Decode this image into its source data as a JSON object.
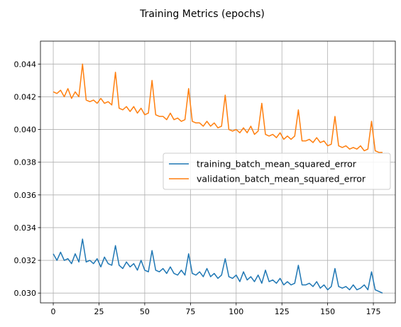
{
  "chart_data": {
    "type": "line",
    "title": "Training Metrics (epochs)",
    "xlabel": "",
    "ylabel": "",
    "xlim": [
      -7,
      187
    ],
    "ylim": [
      0.0294,
      0.0454
    ],
    "grid": true,
    "legend_position": "center-right",
    "x_ticks": [
      0,
      25,
      50,
      75,
      100,
      125,
      150,
      175
    ],
    "x_tick_labels": [
      "0",
      "25",
      "50",
      "75",
      "100",
      "125",
      "150",
      "175"
    ],
    "y_ticks": [
      0.03,
      0.032,
      0.034,
      0.036,
      0.038,
      0.04,
      0.042,
      0.044
    ],
    "y_tick_labels": [
      "0.030",
      "0.032",
      "0.034",
      "0.036",
      "0.038",
      "0.040",
      "0.042",
      "0.044"
    ],
    "series": [
      {
        "name": "training_batch_mean_squared_error",
        "color": "#1f77b4",
        "x": [
          0,
          2,
          4,
          6,
          8,
          10,
          12,
          14,
          16,
          18,
          20,
          22,
          24,
          26,
          28,
          30,
          32,
          34,
          36,
          38,
          40,
          42,
          44,
          46,
          48,
          50,
          52,
          54,
          56,
          58,
          60,
          62,
          64,
          66,
          68,
          70,
          72,
          74,
          76,
          78,
          80,
          82,
          84,
          86,
          88,
          90,
          92,
          94,
          96,
          98,
          100,
          102,
          104,
          106,
          108,
          110,
          112,
          114,
          116,
          118,
          120,
          122,
          124,
          126,
          128,
          130,
          132,
          134,
          136,
          138,
          140,
          142,
          144,
          146,
          148,
          150,
          152,
          154,
          156,
          158,
          160,
          162,
          164,
          166,
          168,
          170,
          172,
          174,
          176,
          178,
          180
        ],
        "values": [
          0.0324,
          0.032,
          0.0325,
          0.032,
          0.0321,
          0.0318,
          0.0324,
          0.0319,
          0.0333,
          0.0319,
          0.032,
          0.0318,
          0.0321,
          0.0316,
          0.0322,
          0.0318,
          0.0317,
          0.0329,
          0.0317,
          0.0315,
          0.0319,
          0.0316,
          0.0318,
          0.0314,
          0.032,
          0.0314,
          0.0313,
          0.0326,
          0.0314,
          0.0313,
          0.0315,
          0.0312,
          0.0316,
          0.0312,
          0.0311,
          0.0314,
          0.0311,
          0.0324,
          0.0312,
          0.0311,
          0.0313,
          0.031,
          0.0315,
          0.031,
          0.0312,
          0.0309,
          0.0311,
          0.0321,
          0.031,
          0.0309,
          0.0311,
          0.0307,
          0.0313,
          0.0308,
          0.031,
          0.0307,
          0.0311,
          0.0306,
          0.0314,
          0.0307,
          0.0308,
          0.0306,
          0.0309,
          0.0305,
          0.0307,
          0.0305,
          0.0306,
          0.0317,
          0.0305,
          0.0305,
          0.0306,
          0.0304,
          0.0307,
          0.0303,
          0.0305,
          0.0302,
          0.0304,
          0.0315,
          0.0304,
          0.0303,
          0.0304,
          0.0302,
          0.0305,
          0.0302,
          0.0303,
          0.0305,
          0.0302,
          0.0313,
          0.0302,
          0.0301,
          0.03
        ]
      },
      {
        "name": "validation_batch_mean_squared_error",
        "color": "#ff7f0e",
        "x": [
          0,
          2,
          4,
          6,
          8,
          10,
          12,
          14,
          16,
          18,
          20,
          22,
          24,
          26,
          28,
          30,
          32,
          34,
          36,
          38,
          40,
          42,
          44,
          46,
          48,
          50,
          52,
          54,
          56,
          58,
          60,
          62,
          64,
          66,
          68,
          70,
          72,
          74,
          76,
          78,
          80,
          82,
          84,
          86,
          88,
          90,
          92,
          94,
          96,
          98,
          100,
          102,
          104,
          106,
          108,
          110,
          112,
          114,
          116,
          118,
          120,
          122,
          124,
          126,
          128,
          130,
          132,
          134,
          136,
          138,
          140,
          142,
          144,
          146,
          148,
          150,
          152,
          154,
          156,
          158,
          160,
          162,
          164,
          166,
          168,
          170,
          172,
          174,
          176,
          178,
          180
        ],
        "values": [
          0.0423,
          0.0422,
          0.0424,
          0.042,
          0.0425,
          0.0419,
          0.0423,
          0.042,
          0.044,
          0.0418,
          0.0417,
          0.0418,
          0.0416,
          0.0419,
          0.0416,
          0.0417,
          0.0415,
          0.0435,
          0.0413,
          0.0412,
          0.0414,
          0.0411,
          0.0414,
          0.041,
          0.0413,
          0.0409,
          0.041,
          0.043,
          0.0409,
          0.0408,
          0.0408,
          0.0406,
          0.041,
          0.0406,
          0.0407,
          0.0405,
          0.0406,
          0.0425,
          0.0405,
          0.0404,
          0.0404,
          0.0402,
          0.0405,
          0.0402,
          0.0404,
          0.0401,
          0.0402,
          0.0421,
          0.04,
          0.0399,
          0.04,
          0.0398,
          0.0401,
          0.0398,
          0.0402,
          0.0397,
          0.0399,
          0.0416,
          0.0397,
          0.0396,
          0.0397,
          0.0395,
          0.0398,
          0.0394,
          0.0396,
          0.0394,
          0.0396,
          0.0412,
          0.0393,
          0.0393,
          0.0394,
          0.0392,
          0.0395,
          0.0392,
          0.0393,
          0.039,
          0.0391,
          0.0408,
          0.039,
          0.0389,
          0.039,
          0.0388,
          0.0389,
          0.0388,
          0.039,
          0.0387,
          0.0388,
          0.0405,
          0.0387,
          0.0386,
          0.0386
        ]
      }
    ]
  }
}
